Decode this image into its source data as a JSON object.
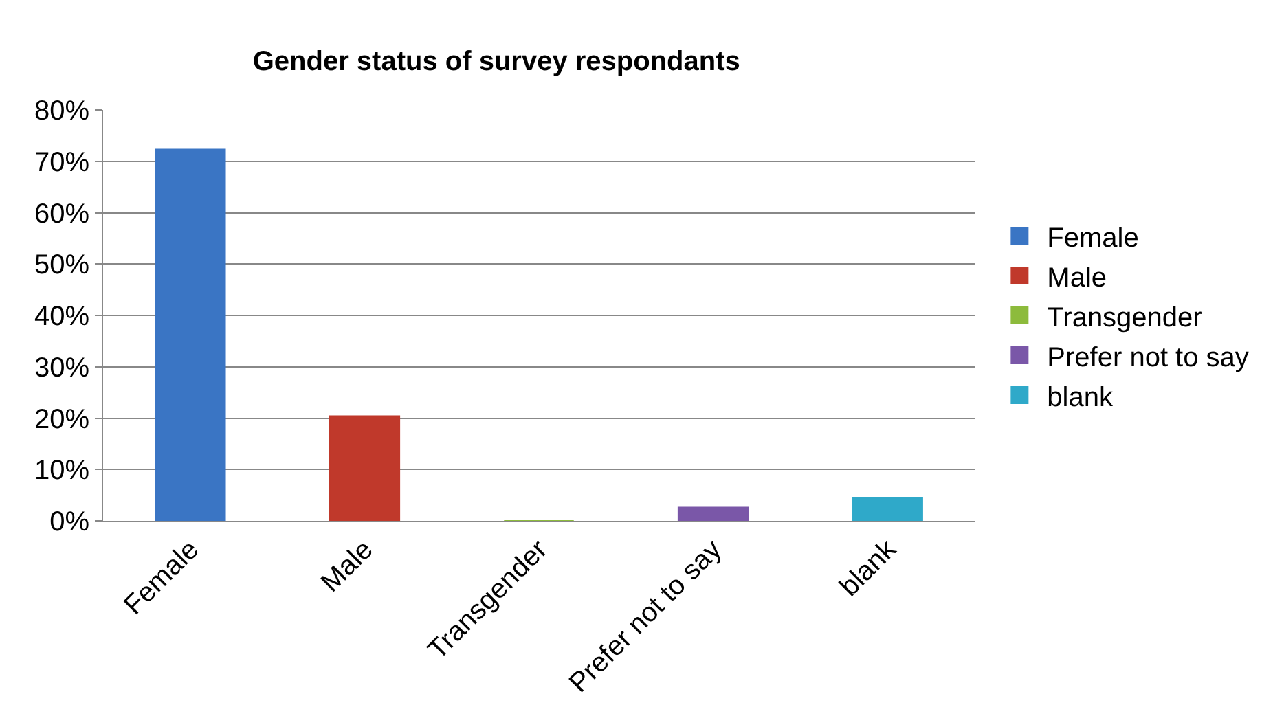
{
  "chart_data": {
    "type": "bar",
    "title": "Gender status of survey respondants",
    "categories": [
      "Female",
      "Male",
      "Transgender",
      "Prefer not to say",
      "blank"
    ],
    "series": [
      {
        "name": "Female",
        "color": "#3a75c4",
        "values": [
          72.3,
          null,
          null,
          null,
          null
        ]
      },
      {
        "name": "Male",
        "color": "#c0392b",
        "values": [
          null,
          20.4,
          null,
          null,
          null
        ]
      },
      {
        "name": "Transgender",
        "color": "#8dbb3c",
        "values": [
          null,
          null,
          0,
          null,
          null
        ]
      },
      {
        "name": "Prefer not to say",
        "color": "#7a57a8",
        "values": [
          null,
          null,
          null,
          2.6,
          null
        ]
      },
      {
        "name": "blank",
        "color": "#2fa9c9",
        "values": [
          null,
          null,
          null,
          null,
          4.5
        ]
      }
    ],
    "ylim": [
      0,
      80
    ],
    "yticks": [
      {
        "value": 0,
        "label": "0%"
      },
      {
        "value": 10,
        "label": "10%"
      },
      {
        "value": 20,
        "label": "20%"
      },
      {
        "value": 30,
        "label": "30%"
      },
      {
        "value": 40,
        "label": "40%"
      },
      {
        "value": 50,
        "label": "50%"
      },
      {
        "value": 60,
        "label": "60%"
      },
      {
        "value": 70,
        "label": "70%"
      },
      {
        "value": 80,
        "label": "80%"
      }
    ],
    "grid": "y",
    "legend": "right"
  }
}
